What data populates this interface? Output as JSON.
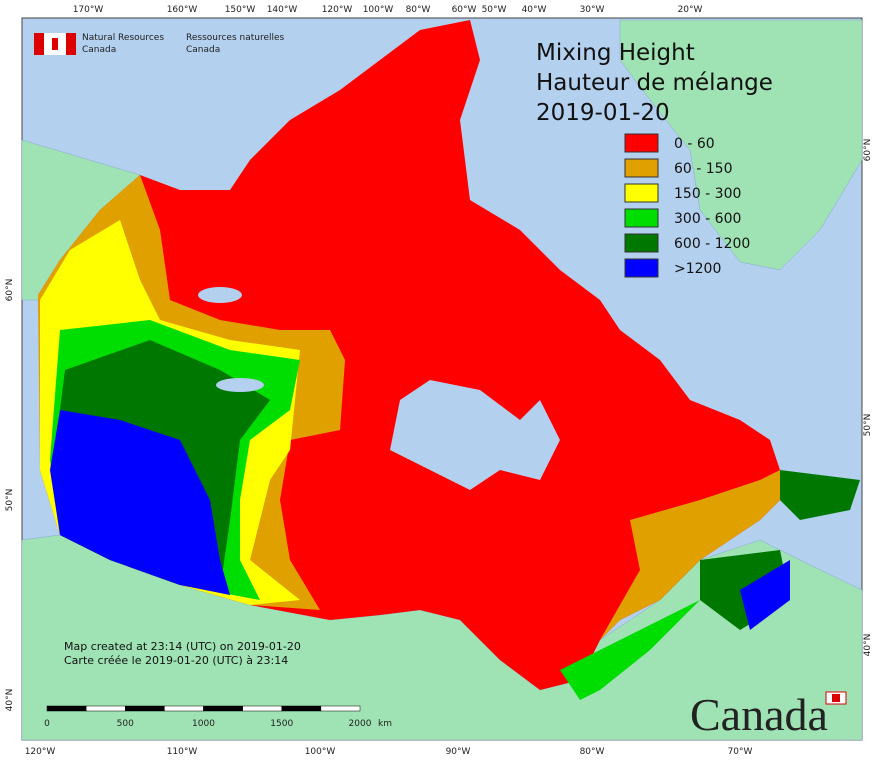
{
  "header": {
    "org_en": [
      "Natural Resources",
      "Canada"
    ],
    "org_fr": [
      "Ressources naturelles",
      "Canada"
    ]
  },
  "legend": {
    "title": [
      "Mixing Height",
      "Hauteur de mélange",
      "2019-01-20"
    ],
    "items": [
      {
        "label": "0 - 60",
        "color": "#ff0000"
      },
      {
        "label": "60 - 150",
        "color": "#e0a000"
      },
      {
        "label": "150 - 300",
        "color": "#ffff00"
      },
      {
        "label": "300 - 600",
        "color": "#00dd00"
      },
      {
        "label": "600 - 1200",
        "color": "#007800"
      },
      {
        "label": ">1200",
        "color": "#0000ff"
      }
    ]
  },
  "graticule": {
    "top": [
      "170°W",
      "160°W",
      "150°W",
      "140°W",
      "120°W",
      "100°W",
      "80°W",
      "60°W",
      "50°W",
      "40°W",
      "30°W",
      "20°W"
    ],
    "bottom": [
      "120°W",
      "110°W",
      "100°W",
      "90°W",
      "80°W",
      "70°W"
    ],
    "left": [
      "60°N",
      "50°N",
      "40°N"
    ],
    "right": [
      "60°N",
      "50°N",
      "40°N"
    ]
  },
  "footer": {
    "created_en": "Map created at 23:14 (UTC) on 2019-01-20",
    "created_fr": "Carte créée le 2019-01-20 (UTC) à 23:14",
    "scale": [
      "0",
      "500",
      "1000",
      "1500",
      "2000"
    ],
    "unit": "km",
    "wordmark": "Canada"
  }
}
